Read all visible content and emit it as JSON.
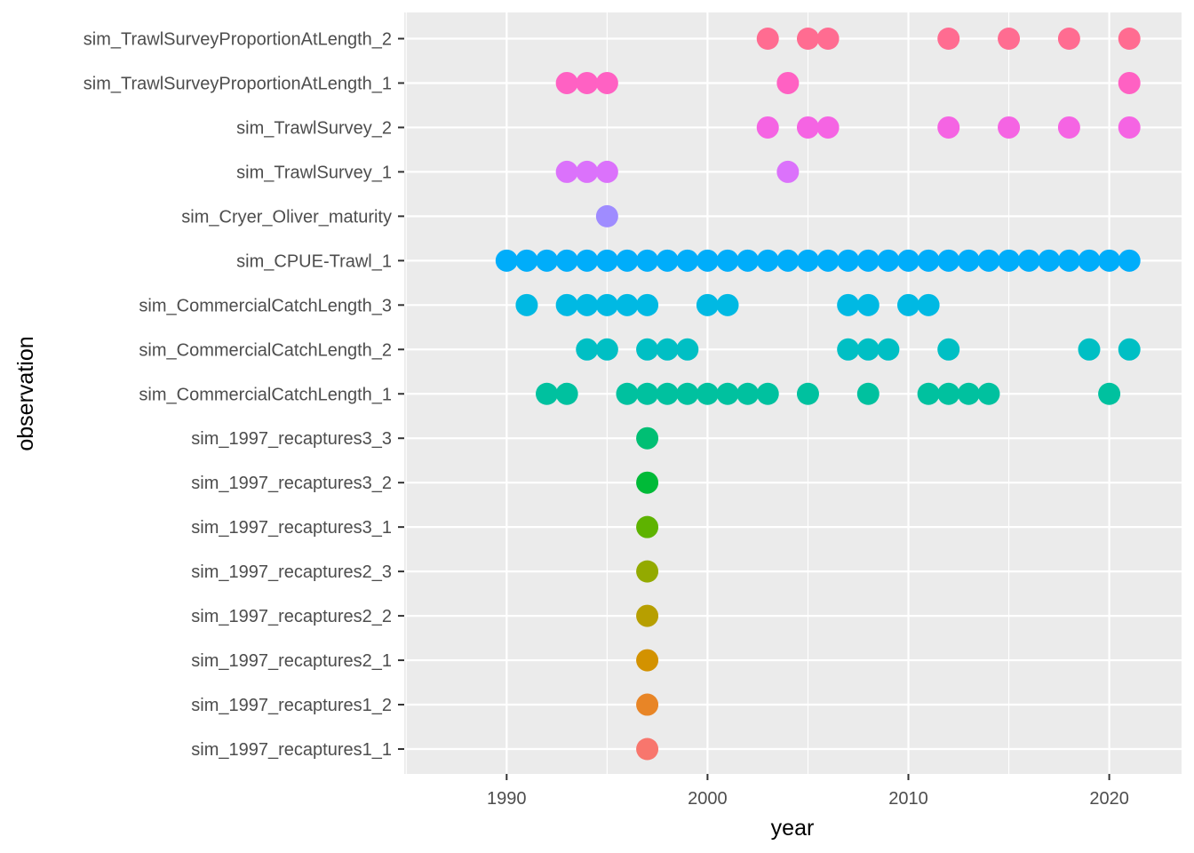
{
  "chart_data": {
    "type": "scatter",
    "xlabel": "year",
    "ylabel": "observation",
    "xlim": [
      1984.9,
      2023.6
    ],
    "x_ticks": [
      1990,
      2000,
      2010,
      2020
    ],
    "grid": true,
    "legend": "none",
    "series": [
      {
        "label": "sim_1997_recaptures1_1",
        "color": "#F8766D",
        "x": [
          1997
        ]
      },
      {
        "label": "sim_1997_recaptures1_2",
        "color": "#E88526",
        "x": [
          1997
        ]
      },
      {
        "label": "sim_1997_recaptures2_1",
        "color": "#D39200",
        "x": [
          1997
        ]
      },
      {
        "label": "sim_1997_recaptures2_2",
        "color": "#B79F00",
        "x": [
          1997
        ]
      },
      {
        "label": "sim_1997_recaptures2_3",
        "color": "#93AA00",
        "x": [
          1997
        ]
      },
      {
        "label": "sim_1997_recaptures3_1",
        "color": "#5EB300",
        "x": [
          1997
        ]
      },
      {
        "label": "sim_1997_recaptures3_2",
        "color": "#00BA38",
        "x": [
          1997
        ]
      },
      {
        "label": "sim_1997_recaptures3_3",
        "color": "#00BF74",
        "x": [
          1997
        ]
      },
      {
        "label": "sim_CommercialCatchLength_1",
        "color": "#00C19F",
        "x": [
          1992,
          1993,
          1996,
          1997,
          1998,
          1999,
          2000,
          2001,
          2002,
          2003,
          2005,
          2008,
          2011,
          2012,
          2013,
          2014,
          2020
        ]
      },
      {
        "label": "sim_CommercialCatchLength_2",
        "color": "#00BFC4",
        "x": [
          1994,
          1995,
          1997,
          1998,
          1999,
          2007,
          2008,
          2009,
          2012,
          2019,
          2021
        ]
      },
      {
        "label": "sim_CommercialCatchLength_3",
        "color": "#00B9E3",
        "x": [
          1991,
          1993,
          1994,
          1995,
          1996,
          1997,
          2000,
          2001,
          2007,
          2008,
          2010,
          2011
        ]
      },
      {
        "label": "sim_CPUE-Trawl_1",
        "color": "#00ADFA",
        "x": [
          1990,
          1991,
          1992,
          1993,
          1994,
          1995,
          1996,
          1997,
          1998,
          1999,
          2000,
          2001,
          2002,
          2003,
          2004,
          2005,
          2006,
          2007,
          2008,
          2009,
          2010,
          2011,
          2012,
          2013,
          2014,
          2015,
          2016,
          2017,
          2018,
          2019,
          2020,
          2021
        ]
      },
      {
        "label": "sim_Cryer_Oliver_maturity",
        "color": "#9F8CFF",
        "x": [
          1995
        ]
      },
      {
        "label": "sim_TrawlSurvey_1",
        "color": "#DB72FB",
        "x": [
          1993,
          1994,
          1995,
          2004
        ]
      },
      {
        "label": "sim_TrawlSurvey_2",
        "color": "#F564E3",
        "x": [
          2003,
          2005,
          2006,
          2012,
          2015,
          2018,
          2021
        ]
      },
      {
        "label": "sim_TrawlSurveyProportionAtLength_1",
        "color": "#FF61C3",
        "x": [
          1993,
          1994,
          1995,
          2004,
          2021
        ]
      },
      {
        "label": "sim_TrawlSurveyProportionAtLength_2",
        "color": "#FF6C91",
        "x": [
          2003,
          2005,
          2006,
          2012,
          2015,
          2018,
          2021
        ]
      }
    ]
  }
}
